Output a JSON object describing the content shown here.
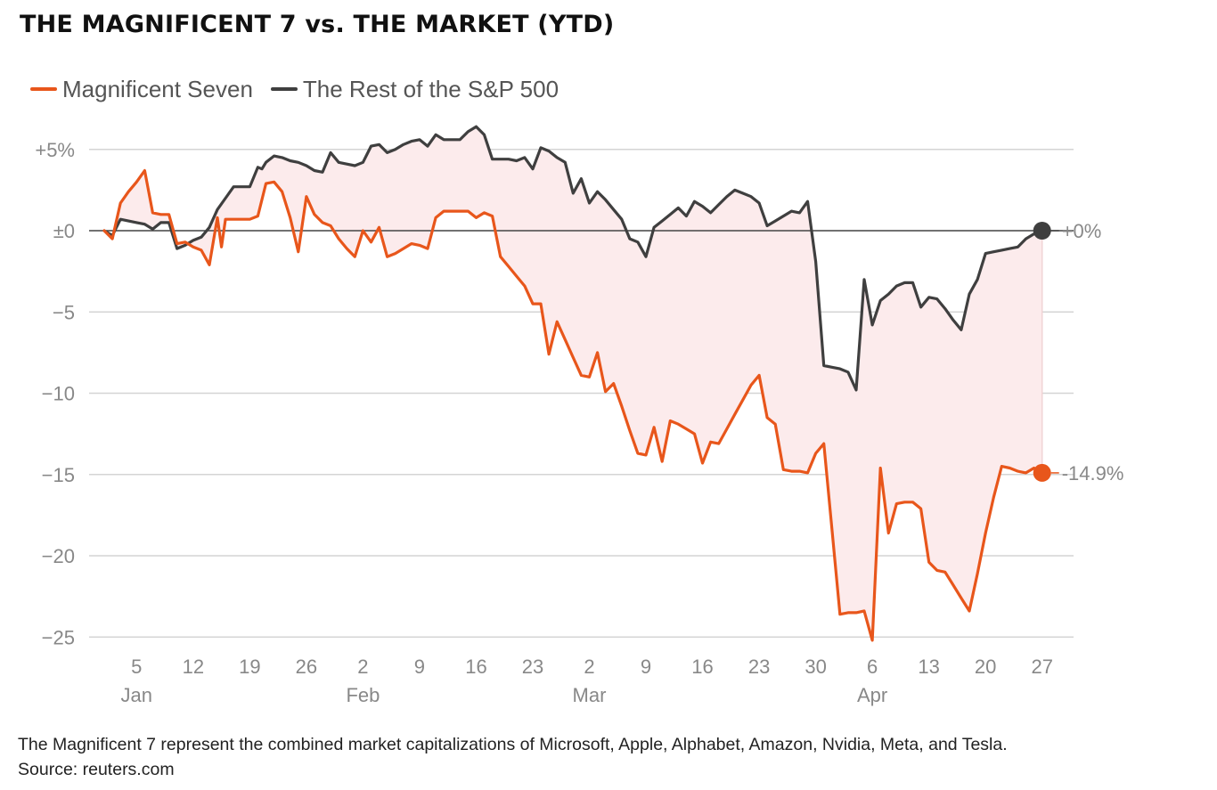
{
  "title": "THE MAGNIFICENT 7 vs. THE MARKET (YTD)",
  "footer": {
    "note": "The Magnificent 7 represent the combined market capitalizations of Microsoft, Apple, Alphabet, Amazon, Nvidia, Meta, and Tesla.",
    "source": "Source: reuters.com"
  },
  "colors": {
    "mag7": "#e8561b",
    "rest": "#3f3f3f",
    "fill": "#fcebec",
    "grid": "#d4d4d4",
    "zero": "#444444",
    "label": "#888888"
  },
  "chart_data": {
    "type": "line",
    "title": "THE MAGNIFICENT 7 vs. THE MARKET (YTD)",
    "xlabel": "",
    "ylabel": "",
    "ylim": [
      -25,
      7
    ],
    "y_ticks": [
      {
        "value": 5,
        "label": "+5%"
      },
      {
        "value": 0,
        "label": "±0"
      },
      {
        "value": -5,
        "label": "−5"
      },
      {
        "value": -10,
        "label": "−10"
      },
      {
        "value": -15,
        "label": "−15"
      },
      {
        "value": -20,
        "label": "−20"
      },
      {
        "value": -25,
        "label": "−25"
      }
    ],
    "x_ticks": [
      {
        "day": 5,
        "label": "5",
        "month": "Jan"
      },
      {
        "day": 12,
        "label": "12"
      },
      {
        "day": 19,
        "label": "19"
      },
      {
        "day": 26,
        "label": "26"
      },
      {
        "day": 33,
        "label": "2",
        "month": "Feb"
      },
      {
        "day": 40,
        "label": "9"
      },
      {
        "day": 47,
        "label": "16"
      },
      {
        "day": 54,
        "label": "23"
      },
      {
        "day": 61,
        "label": "2",
        "month": "Mar"
      },
      {
        "day": 68,
        "label": "9"
      },
      {
        "day": 75,
        "label": "16"
      },
      {
        "day": 82,
        "label": "23"
      },
      {
        "day": 89,
        "label": "30"
      },
      {
        "day": 96,
        "label": "6",
        "month": "Apr"
      },
      {
        "day": 103,
        "label": "13"
      },
      {
        "day": 110,
        "label": "20"
      },
      {
        "day": 117,
        "label": "27"
      }
    ],
    "xlim": [
      1,
      120
    ],
    "legend": {
      "position": "top-left"
    },
    "series": [
      {
        "name": "Magnificent Seven",
        "end_label": "-14.9%",
        "points": [
          [
            1,
            0
          ],
          [
            2,
            -0.5
          ],
          [
            3,
            1.7
          ],
          [
            4,
            2.4
          ],
          [
            5,
            3
          ],
          [
            6,
            3.7
          ],
          [
            7,
            1.1
          ],
          [
            8,
            1
          ],
          [
            9,
            1
          ],
          [
            10,
            -0.8
          ],
          [
            11,
            -0.7
          ],
          [
            12,
            -1
          ],
          [
            13,
            -1.2
          ],
          [
            14,
            -2.1
          ],
          [
            15,
            0.8
          ],
          [
            15.5,
            -1
          ],
          [
            16,
            0.7
          ],
          [
            19,
            0.7
          ],
          [
            20,
            0.9
          ],
          [
            21,
            2.9
          ],
          [
            22,
            3
          ],
          [
            23,
            2.4
          ],
          [
            24,
            0.8
          ],
          [
            25,
            -1.3
          ],
          [
            26,
            2.1
          ],
          [
            27,
            1
          ],
          [
            28,
            0.5
          ],
          [
            29,
            0.3
          ],
          [
            30,
            -0.5
          ],
          [
            31,
            -1.1
          ],
          [
            32,
            -1.6
          ],
          [
            33,
            0
          ],
          [
            34,
            -0.7
          ],
          [
            35,
            0.2
          ],
          [
            36,
            -1.6
          ],
          [
            37,
            -1.4
          ],
          [
            38,
            -1.1
          ],
          [
            39,
            -0.8
          ],
          [
            40,
            -0.9
          ],
          [
            41,
            -1.1
          ],
          [
            42,
            0.8
          ],
          [
            43,
            1.2
          ],
          [
            44,
            1.2
          ],
          [
            45,
            1.2
          ],
          [
            46,
            1.2
          ],
          [
            47,
            0.8
          ],
          [
            48,
            1.1
          ],
          [
            49,
            0.9
          ],
          [
            50,
            -1.6
          ],
          [
            51,
            -2.2
          ],
          [
            52,
            -2.8
          ],
          [
            53,
            -3.4
          ],
          [
            54,
            -4.5
          ],
          [
            55,
            -4.5
          ],
          [
            56,
            -7.6
          ],
          [
            57,
            -5.6
          ],
          [
            58,
            -6.7
          ],
          [
            59,
            -7.8
          ],
          [
            60,
            -8.9
          ],
          [
            61,
            -9
          ],
          [
            62,
            -7.5
          ],
          [
            63,
            -9.9
          ],
          [
            64,
            -9.4
          ],
          [
            65,
            -10.8
          ],
          [
            66,
            -12.3
          ],
          [
            67,
            -13.7
          ],
          [
            68,
            -13.8
          ],
          [
            69,
            -12.1
          ],
          [
            70,
            -14.2
          ],
          [
            71,
            -11.7
          ],
          [
            72,
            -11.9
          ],
          [
            73,
            -12.2
          ],
          [
            74,
            -12.5
          ],
          [
            75,
            -14.3
          ],
          [
            76,
            -13
          ],
          [
            77,
            -13.1
          ],
          [
            78,
            -12.2
          ],
          [
            79,
            -11.3
          ],
          [
            80,
            -10.4
          ],
          [
            81,
            -9.5
          ],
          [
            82,
            -8.9
          ],
          [
            83,
            -11.5
          ],
          [
            84,
            -11.9
          ],
          [
            85,
            -14.7
          ],
          [
            86,
            -14.8
          ],
          [
            87,
            -14.8
          ],
          [
            88,
            -14.9
          ],
          [
            89,
            -13.7
          ],
          [
            90,
            -13.1
          ],
          [
            91,
            -18.3
          ],
          [
            92,
            -23.6
          ],
          [
            93,
            -23.5
          ],
          [
            94,
            -23.5
          ],
          [
            95,
            -23.4
          ],
          [
            96,
            -25.2
          ],
          [
            97,
            -14.6
          ],
          [
            98,
            -18.6
          ],
          [
            99,
            -16.8
          ],
          [
            100,
            -16.7
          ],
          [
            101,
            -16.7
          ],
          [
            102,
            -17.1
          ],
          [
            103,
            -20.4
          ],
          [
            104,
            -20.9
          ],
          [
            105,
            -21
          ],
          [
            106,
            -21.8
          ],
          [
            107,
            -22.6
          ],
          [
            108,
            -23.4
          ],
          [
            109,
            -21.1
          ],
          [
            110,
            -18.6
          ],
          [
            111,
            -16.4
          ],
          [
            112,
            -14.5
          ],
          [
            113,
            -14.6
          ],
          [
            114,
            -14.8
          ],
          [
            115,
            -14.9
          ],
          [
            116,
            -14.6
          ],
          [
            117,
            -14.9
          ]
        ]
      },
      {
        "name": "The Rest of the S&P 500",
        "end_label": "+0%",
        "points": [
          [
            1,
            0
          ],
          [
            2,
            -0.3
          ],
          [
            3,
            0.7
          ],
          [
            4,
            0.6
          ],
          [
            5,
            0.5
          ],
          [
            6,
            0.4
          ],
          [
            7,
            0.1
          ],
          [
            8,
            0.5
          ],
          [
            9,
            0.5
          ],
          [
            10,
            -1.1
          ],
          [
            11,
            -0.9
          ],
          [
            12,
            -0.6
          ],
          [
            13,
            -0.4
          ],
          [
            14,
            0.2
          ],
          [
            15,
            1.3
          ],
          [
            16,
            2
          ],
          [
            17,
            2.7
          ],
          [
            19,
            2.7
          ],
          [
            20,
            3.9
          ],
          [
            20.5,
            3.8
          ],
          [
            21,
            4.2
          ],
          [
            22,
            4.6
          ],
          [
            23,
            4.5
          ],
          [
            24,
            4.3
          ],
          [
            25,
            4.2
          ],
          [
            26,
            4
          ],
          [
            27,
            3.7
          ],
          [
            28,
            3.6
          ],
          [
            29,
            4.8
          ],
          [
            30,
            4.2
          ],
          [
            31,
            4.1
          ],
          [
            32,
            4
          ],
          [
            33,
            4.2
          ],
          [
            34,
            5.2
          ],
          [
            35,
            5.3
          ],
          [
            36,
            4.8
          ],
          [
            37,
            5
          ],
          [
            38,
            5.3
          ],
          [
            39,
            5.5
          ],
          [
            40,
            5.6
          ],
          [
            41,
            5.2
          ],
          [
            42,
            5.9
          ],
          [
            43,
            5.6
          ],
          [
            44,
            5.6
          ],
          [
            45,
            5.6
          ],
          [
            46,
            6.1
          ],
          [
            47,
            6.4
          ],
          [
            48,
            5.9
          ],
          [
            49,
            4.4
          ],
          [
            50,
            4.4
          ],
          [
            51,
            4.4
          ],
          [
            52,
            4.3
          ],
          [
            53,
            4.5
          ],
          [
            54,
            3.8
          ],
          [
            55,
            5.1
          ],
          [
            56,
            4.9
          ],
          [
            57,
            4.5
          ],
          [
            58,
            4.2
          ],
          [
            59,
            2.3
          ],
          [
            60,
            3.2
          ],
          [
            61,
            1.7
          ],
          [
            62,
            2.4
          ],
          [
            63,
            1.9
          ],
          [
            64,
            1.3
          ],
          [
            65,
            0.7
          ],
          [
            66,
            -0.5
          ],
          [
            67,
            -0.7
          ],
          [
            68,
            -1.6
          ],
          [
            69,
            0.2
          ],
          [
            70,
            0.6
          ],
          [
            71,
            1
          ],
          [
            72,
            1.4
          ],
          [
            73,
            0.9
          ],
          [
            74,
            1.8
          ],
          [
            75,
            1.5
          ],
          [
            76,
            1.1
          ],
          [
            77,
            1.6
          ],
          [
            78,
            2.1
          ],
          [
            79,
            2.5
          ],
          [
            80,
            2.3
          ],
          [
            81,
            2.1
          ],
          [
            82,
            1.7
          ],
          [
            83,
            0.3
          ],
          [
            84,
            0.6
          ],
          [
            85,
            0.9
          ],
          [
            86,
            1.2
          ],
          [
            87,
            1.1
          ],
          [
            88,
            1.8
          ],
          [
            89,
            -1.9
          ],
          [
            90,
            -8.3
          ],
          [
            91,
            -8.4
          ],
          [
            92,
            -8.5
          ],
          [
            93,
            -8.7
          ],
          [
            94,
            -9.8
          ],
          [
            95,
            -3
          ],
          [
            96,
            -5.8
          ],
          [
            97,
            -4.3
          ],
          [
            98,
            -3.9
          ],
          [
            99,
            -3.4
          ],
          [
            100,
            -3.2
          ],
          [
            101,
            -3.2
          ],
          [
            102,
            -4.7
          ],
          [
            103,
            -4.1
          ],
          [
            104,
            -4.2
          ],
          [
            105,
            -4.8
          ],
          [
            106,
            -5.5
          ],
          [
            107,
            -6.1
          ],
          [
            108,
            -3.9
          ],
          [
            109,
            -3
          ],
          [
            110,
            -1.4
          ],
          [
            111,
            -1.3
          ],
          [
            112,
            -1.2
          ],
          [
            113,
            -1.1
          ],
          [
            114,
            -1
          ],
          [
            115,
            -0.5
          ],
          [
            116,
            -0.2
          ],
          [
            117,
            0
          ]
        ]
      }
    ]
  }
}
